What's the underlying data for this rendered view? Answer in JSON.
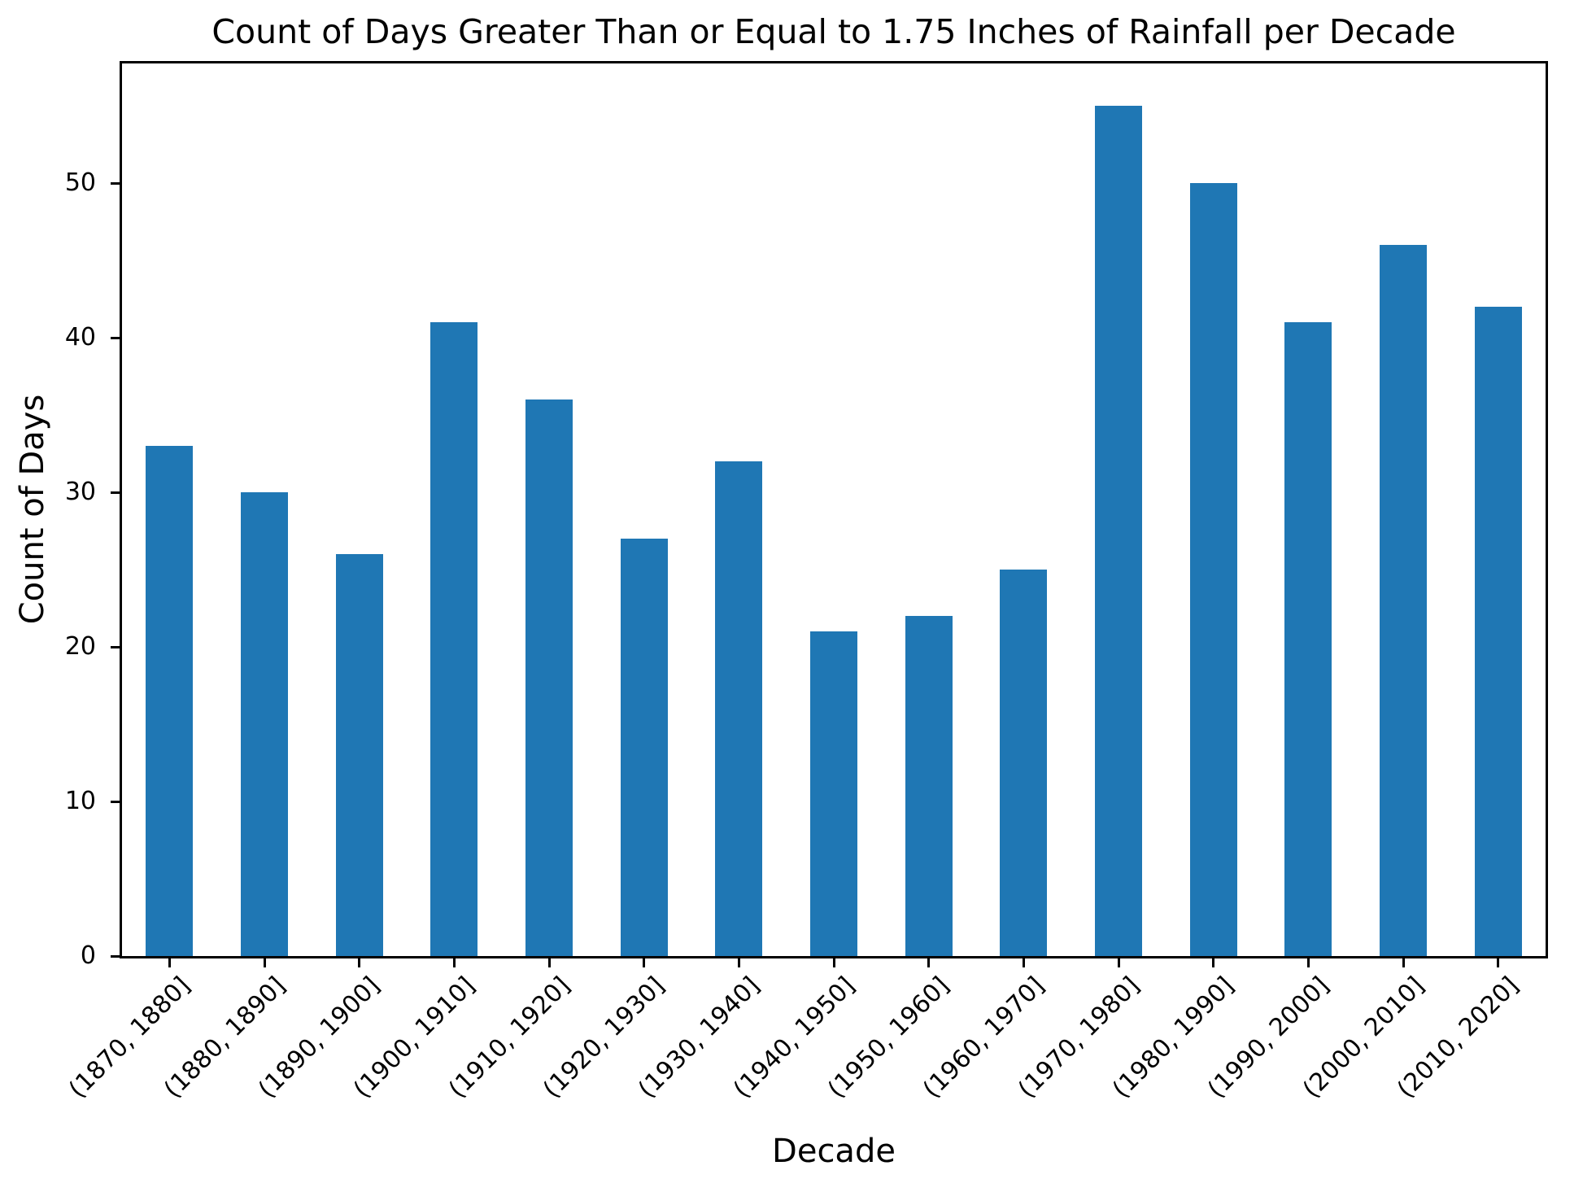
{
  "figure": {
    "background_color": "#ffffff",
    "text_color": "#000000",
    "spine_color": "#000000"
  },
  "chart_data": {
    "type": "bar",
    "title": "Count of Days Greater Than or Equal to 1.75 Inches of Rainfall per Decade",
    "xlabel": "Decade",
    "ylabel": "Count of Days",
    "categories": [
      "(1870, 1880]",
      "(1880, 1890]",
      "(1890, 1900]",
      "(1900, 1910]",
      "(1910, 1920]",
      "(1920, 1930]",
      "(1930, 1940]",
      "(1940, 1950]",
      "(1950, 1960]",
      "(1960, 1970]",
      "(1970, 1980]",
      "(1980, 1990]",
      "(1990, 2000]",
      "(2000, 2010]",
      "(2010, 2020]"
    ],
    "values": [
      33,
      30,
      26,
      41,
      36,
      27,
      32,
      21,
      22,
      25,
      55,
      50,
      41,
      46,
      42
    ],
    "bar_color": "#1f77b4",
    "yticks": [
      0,
      10,
      20,
      30,
      40,
      50
    ],
    "ylim": [
      0,
      57.75
    ],
    "bar_width_fraction": 0.5,
    "x_tick_label_rotation_deg": 45,
    "grid": false,
    "legend_position": "none"
  }
}
